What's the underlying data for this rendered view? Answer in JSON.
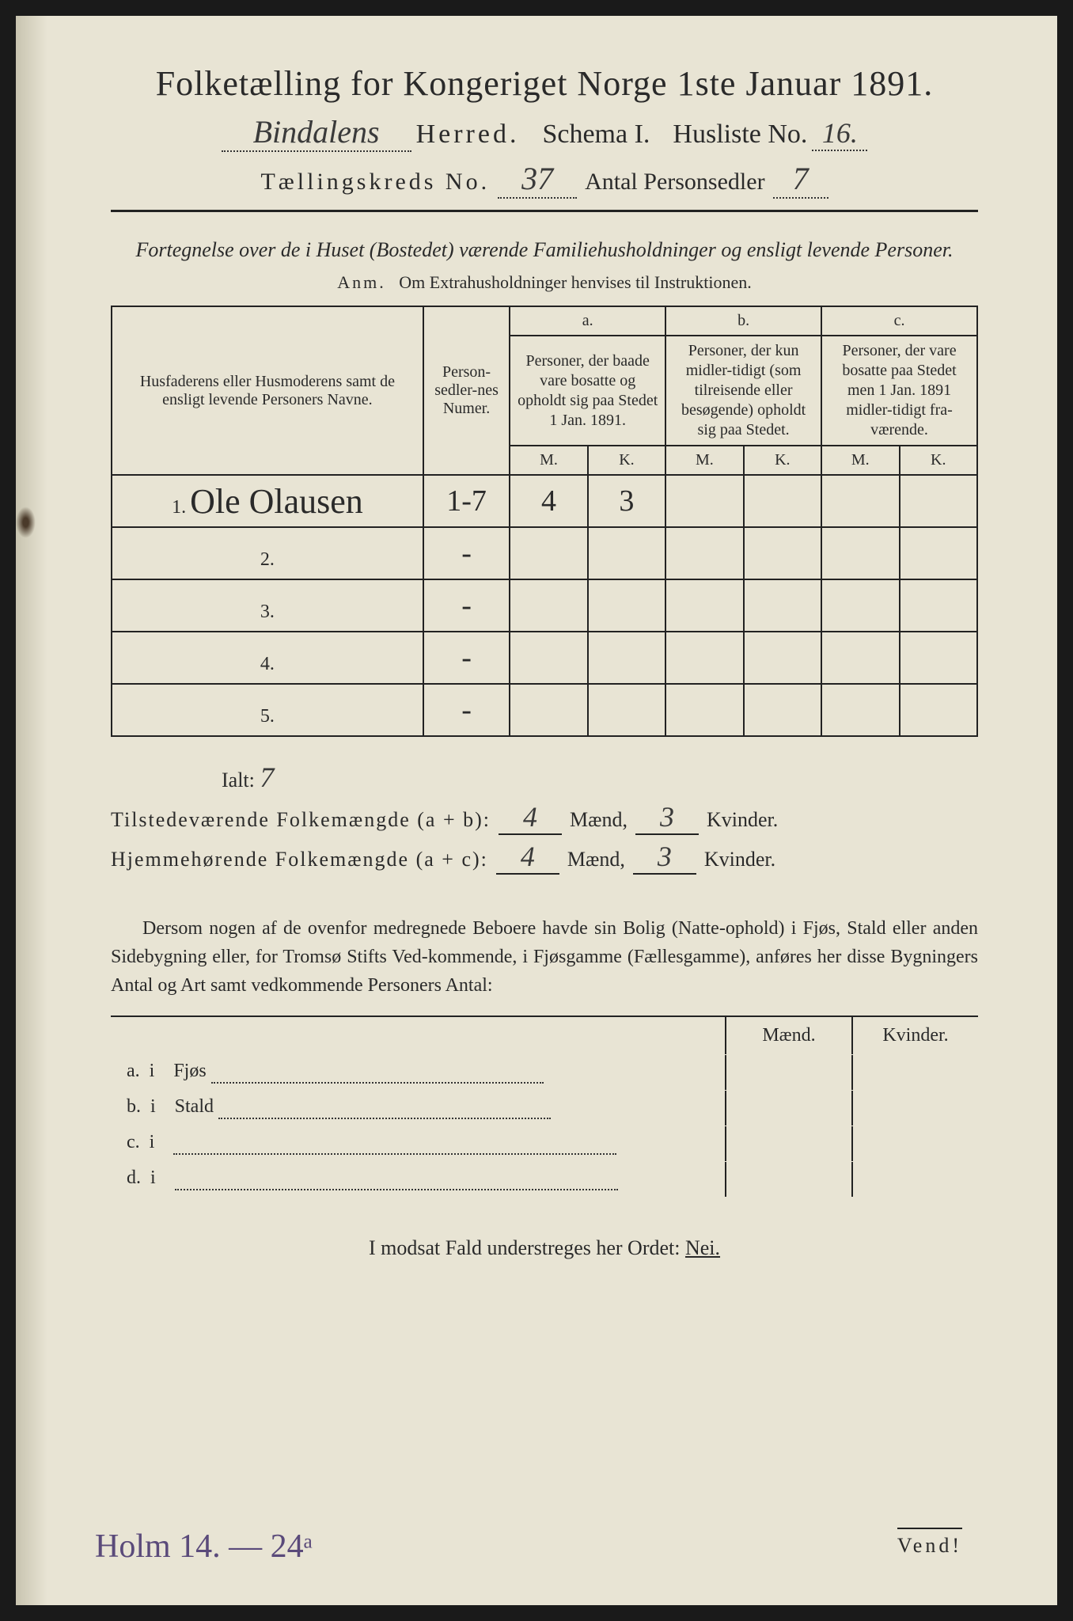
{
  "title": "Folketælling for Kongeriget Norge 1ste Januar 1891.",
  "herred_hw": "Bindalens",
  "herred_label": "Herred.",
  "schema_label": "Schema I.",
  "husliste_label": "Husliste No.",
  "husliste_no": "16.",
  "kreds_label": "Tællingskreds No.",
  "kreds_no": "37",
  "antal_label": "Antal Personsedler",
  "antal_val": "7",
  "fortegnelse": "Fortegnelse over de i Huset (Bostedet) værende Familiehusholdninger og ensligt levende Personer.",
  "anm_prefix": "Anm.",
  "anm_text": "Om Extrahusholdninger henvises til Instruktionen.",
  "table": {
    "col_name": "Husfaderens eller Husmoderens samt de ensligt levende Personers Navne.",
    "col_num": "Person-sedler-nes Numer.",
    "abc": [
      "a.",
      "b.",
      "c."
    ],
    "desc_a": "Personer, der baade vare bosatte og opholdt sig paa Stedet 1 Jan. 1891.",
    "desc_b": "Personer, der kun midler-tidigt (som tilreisende eller besøgende) opholdt sig paa Stedet.",
    "desc_c": "Personer, der vare bosatte paa Stedet men 1 Jan. 1891 midler-tidigt fra-værende.",
    "mk": {
      "m": "M.",
      "k": "K."
    },
    "rows": [
      {
        "n": "1.",
        "name": "Ole Olausen",
        "num": "1-7",
        "am": "4",
        "ak": "3",
        "bm": "",
        "bk": "",
        "cm": "",
        "ck": ""
      },
      {
        "n": "2.",
        "name": "",
        "num": "-",
        "am": "",
        "ak": "",
        "bm": "",
        "bk": "",
        "cm": "",
        "ck": ""
      },
      {
        "n": "3.",
        "name": "",
        "num": "-",
        "am": "",
        "ak": "",
        "bm": "",
        "bk": "",
        "cm": "",
        "ck": ""
      },
      {
        "n": "4.",
        "name": "",
        "num": "-",
        "am": "",
        "ak": "",
        "bm": "",
        "bk": "",
        "cm": "",
        "ck": ""
      },
      {
        "n": "5.",
        "name": "",
        "num": "-",
        "am": "",
        "ak": "",
        "bm": "",
        "bk": "",
        "cm": "",
        "ck": ""
      }
    ]
  },
  "ialt_label": "Ialt:",
  "ialt_val": "7",
  "tilstede_label": "Tilstedeværende Folkemængde (a + b):",
  "hjemme_label": "Hjemmehørende Folkemængde (a + c):",
  "maend_label": "Mænd,",
  "kvinder_label": "Kvinder.",
  "tilstede_m": "4",
  "tilstede_k": "3",
  "hjemme_m": "4",
  "hjemme_k": "3",
  "dersom": "Dersom nogen af de ovenfor medregnede Beboere havde sin Bolig (Natte-ophold) i Fjøs, Stald eller anden Sidebygning eller, for Tromsø Stifts Ved-kommende, i Fjøsgamme (Fællesgamme), anføres her disse Bygningers Antal og Art samt vedkommende Personers Antal:",
  "byg_maend": "Mænd.",
  "byg_kvinder": "Kvinder.",
  "byg_rows": [
    {
      "k": "a.",
      "i": "i",
      "t": "Fjøs"
    },
    {
      "k": "b.",
      "i": "i",
      "t": "Stald"
    },
    {
      "k": "c.",
      "i": "i",
      "t": ""
    },
    {
      "k": "d.",
      "i": "i",
      "t": ""
    }
  ],
  "nei_line_pre": "I modsat Fald understreges her Ordet:",
  "nei": "Nei.",
  "vend": "Vend!",
  "bottom_hw": "Holm  14. — 24ᵃ"
}
